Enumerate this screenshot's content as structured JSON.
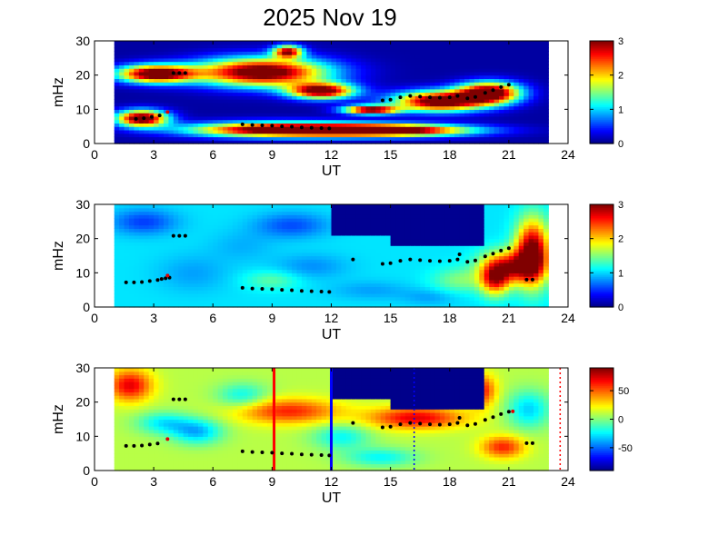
{
  "figure": {
    "title": "2025 Nov 19"
  },
  "chart_data": [
    {
      "type": "heatmap",
      "xlabel": "UT",
      "ylabel": "mHz",
      "xlim": [
        0,
        24
      ],
      "ylim": [
        0,
        30
      ],
      "xticks": [
        "0",
        "3",
        "6",
        "9",
        "12",
        "15",
        "18",
        "21",
        "24"
      ],
      "yticks": [
        "0",
        "10",
        "20",
        "30"
      ],
      "colorbar": {
        "min": 0,
        "max": 3,
        "ticks": [
          "0",
          "1",
          "2",
          "3"
        ],
        "colormap": "jet"
      },
      "data_span_ut": [
        1,
        23
      ],
      "field": {
        "background": 0.1,
        "blobs": [
          {
            "x": 3.1,
            "y": 20.5,
            "rx": 2.1,
            "ry": 2.8,
            "v": 3.4
          },
          {
            "x": 2.4,
            "y": 7.5,
            "rx": 1.4,
            "ry": 2.6,
            "v": 3.4
          },
          {
            "x": 8.5,
            "y": 21,
            "rx": 3.6,
            "ry": 4.5,
            "v": 3.4
          },
          {
            "x": 11.5,
            "y": 15.5,
            "rx": 1.8,
            "ry": 2.5,
            "v": 3.2
          },
          {
            "x": 9.5,
            "y": 4.2,
            "rx": 5.0,
            "ry": 2.3,
            "v": 3.4
          },
          {
            "x": 15,
            "y": 4,
            "rx": 4.5,
            "ry": 1.9,
            "v": 3.3
          },
          {
            "x": 17.5,
            "y": 12.5,
            "rx": 2.5,
            "ry": 3.2,
            "v": 3.4
          },
          {
            "x": 20,
            "y": 15,
            "rx": 1.7,
            "ry": 3.3,
            "v": 3.4
          },
          {
            "x": 14,
            "y": 10,
            "rx": 1.5,
            "ry": 1.4,
            "v": 3.2
          },
          {
            "x": 9.8,
            "y": 27,
            "rx": 0.8,
            "ry": 2.0,
            "v": 2.8
          }
        ],
        "rects": []
      },
      "points_black": [
        {
          "x": 2.1,
          "y": 7.2
        },
        {
          "x": 2.5,
          "y": 7.4
        },
        {
          "x": 2.9,
          "y": 7.8
        },
        {
          "x": 3.3,
          "y": 8.2
        },
        {
          "x": 4,
          "y": 20.6
        },
        {
          "x": 4.3,
          "y": 20.6
        },
        {
          "x": 4.6,
          "y": 20.6
        },
        {
          "x": 7.5,
          "y": 5.6
        },
        {
          "x": 8,
          "y": 5.4
        },
        {
          "x": 8.5,
          "y": 5.3
        },
        {
          "x": 9,
          "y": 5.2
        },
        {
          "x": 9.5,
          "y": 5
        },
        {
          "x": 10,
          "y": 4.9
        },
        {
          "x": 10.5,
          "y": 4.7
        },
        {
          "x": 11,
          "y": 4.6
        },
        {
          "x": 11.5,
          "y": 4.5
        },
        {
          "x": 11.9,
          "y": 4.4
        },
        {
          "x": 14.6,
          "y": 12.6
        },
        {
          "x": 15,
          "y": 12.8
        },
        {
          "x": 15.5,
          "y": 13.5
        },
        {
          "x": 16,
          "y": 13.9
        },
        {
          "x": 16.5,
          "y": 13.7
        },
        {
          "x": 17,
          "y": 13.5
        },
        {
          "x": 17.5,
          "y": 13.4
        },
        {
          "x": 18,
          "y": 13.5
        },
        {
          "x": 18.4,
          "y": 13.9
        },
        {
          "x": 18.9,
          "y": 13.2
        },
        {
          "x": 19.3,
          "y": 13.6
        },
        {
          "x": 19.8,
          "y": 14.8
        },
        {
          "x": 20.2,
          "y": 15.6
        },
        {
          "x": 20.6,
          "y": 16.5
        },
        {
          "x": 21,
          "y": 17.2
        }
      ],
      "points_red": [
        {
          "x": 3.7,
          "y": 9.2
        }
      ]
    },
    {
      "type": "heatmap",
      "xlabel": "UT",
      "ylabel": "mHz",
      "xlim": [
        0,
        24
      ],
      "ylim": [
        0,
        30
      ],
      "xticks": [
        "0",
        "3",
        "6",
        "9",
        "12",
        "15",
        "18",
        "21",
        "24"
      ],
      "yticks": [
        "0",
        "10",
        "20",
        "30"
      ],
      "colorbar": {
        "min": 0,
        "max": 3,
        "ticks": [
          "0",
          "1",
          "2",
          "3"
        ],
        "colormap": "jet"
      },
      "data_span_ut": [
        1,
        23
      ],
      "field": {
        "background": 1.05,
        "blobs": [
          {
            "x": 2.5,
            "y": 25,
            "rx": 1.8,
            "ry": 4,
            "v": 0.55
          },
          {
            "x": 5,
            "y": 10,
            "rx": 2,
            "ry": 6,
            "v": 0.85
          },
          {
            "x": 7.5,
            "y": 18,
            "rx": 1.8,
            "ry": 5,
            "v": 0.9
          },
          {
            "x": 10,
            "y": 24,
            "rx": 2,
            "ry": 4,
            "v": 0.6
          },
          {
            "x": 11,
            "y": 12,
            "rx": 2,
            "ry": 4,
            "v": 0.8
          },
          {
            "x": 14,
            "y": 5,
            "rx": 2.2,
            "ry": 3,
            "v": 0.85
          },
          {
            "x": 17,
            "y": 3,
            "rx": 1.5,
            "ry": 2.5,
            "v": 0.85
          },
          {
            "x": 9,
            "y": 8,
            "rx": 1.5,
            "ry": 3,
            "v": 1.4
          },
          {
            "x": 18.5,
            "y": 8,
            "rx": 1.5,
            "ry": 4,
            "v": 1.5
          },
          {
            "x": 21,
            "y": 12,
            "rx": 1.5,
            "ry": 5,
            "v": 2.6
          },
          {
            "x": 22.2,
            "y": 16,
            "rx": 0.9,
            "ry": 10,
            "v": 3.2
          },
          {
            "x": 20.3,
            "y": 8,
            "rx": 0.8,
            "ry": 5,
            "v": 2.4
          }
        ],
        "rects": [
          {
            "x0": 12,
            "x1": 19.8,
            "y0": 21.5,
            "y1": 30,
            "v": 0.05
          },
          {
            "x0": 15,
            "x1": 19.8,
            "y0": 18,
            "y1": 22,
            "v": 0.05
          }
        ]
      },
      "points_black": [
        {
          "x": 1.6,
          "y": 7.2
        },
        {
          "x": 2,
          "y": 7.2
        },
        {
          "x": 2.4,
          "y": 7.3
        },
        {
          "x": 2.8,
          "y": 7.6
        },
        {
          "x": 3.2,
          "y": 7.9
        },
        {
          "x": 3.4,
          "y": 8.2
        },
        {
          "x": 3.6,
          "y": 8.4
        },
        {
          "x": 3.8,
          "y": 8.6
        },
        {
          "x": 4,
          "y": 20.8
        },
        {
          "x": 4.3,
          "y": 20.8
        },
        {
          "x": 4.6,
          "y": 20.8
        },
        {
          "x": 7.5,
          "y": 5.6
        },
        {
          "x": 8,
          "y": 5.4
        },
        {
          "x": 8.5,
          "y": 5.3
        },
        {
          "x": 9,
          "y": 5.2
        },
        {
          "x": 9.5,
          "y": 5
        },
        {
          "x": 10,
          "y": 4.9
        },
        {
          "x": 10.5,
          "y": 4.7
        },
        {
          "x": 11,
          "y": 4.6
        },
        {
          "x": 11.5,
          "y": 4.5
        },
        {
          "x": 11.9,
          "y": 4.4
        },
        {
          "x": 13.1,
          "y": 13.9
        },
        {
          "x": 14.6,
          "y": 12.6
        },
        {
          "x": 15,
          "y": 12.8
        },
        {
          "x": 15.5,
          "y": 13.5
        },
        {
          "x": 16,
          "y": 13.9
        },
        {
          "x": 16.5,
          "y": 13.7
        },
        {
          "x": 17,
          "y": 13.5
        },
        {
          "x": 17.5,
          "y": 13.4
        },
        {
          "x": 18,
          "y": 13.5
        },
        {
          "x": 18.4,
          "y": 13.9
        },
        {
          "x": 18.9,
          "y": 13.2
        },
        {
          "x": 19.3,
          "y": 13.6
        },
        {
          "x": 19.8,
          "y": 14.8
        },
        {
          "x": 20.2,
          "y": 15.6
        },
        {
          "x": 20.6,
          "y": 16.5
        },
        {
          "x": 21,
          "y": 17.2
        },
        {
          "x": 18.5,
          "y": 15.4
        },
        {
          "x": 21.9,
          "y": 8
        },
        {
          "x": 22.2,
          "y": 8
        }
      ],
      "points_red": [
        {
          "x": 3.7,
          "y": 9.2
        }
      ]
    },
    {
      "type": "heatmap",
      "xlabel": "UT",
      "ylabel": "mHz",
      "xlim": [
        0,
        24
      ],
      "ylim": [
        0,
        30
      ],
      "xticks": [
        "0",
        "3",
        "6",
        "9",
        "12",
        "15",
        "18",
        "21",
        "24"
      ],
      "yticks": [
        "0",
        "10",
        "20",
        "30"
      ],
      "colorbar": {
        "min": -90,
        "max": 90,
        "ticks": [
          "50",
          "0",
          "-50"
        ],
        "tick_values": [
          50,
          0,
          -50
        ],
        "colormap": "jet"
      },
      "data_span_ut": [
        1,
        23
      ],
      "field": {
        "background": 10,
        "blobs": [
          {
            "x": 1.8,
            "y": 25,
            "rx": 1.2,
            "ry": 5,
            "v": 72
          },
          {
            "x": 9.8,
            "y": 17.5,
            "rx": 2.8,
            "ry": 4,
            "v": 62
          },
          {
            "x": 16.3,
            "y": 15.5,
            "rx": 2.6,
            "ry": 3.5,
            "v": 72
          },
          {
            "x": 20.7,
            "y": 7,
            "rx": 1.2,
            "ry": 3.5,
            "v": 62
          },
          {
            "x": 19.6,
            "y": 23.5,
            "rx": 0.8,
            "ry": 5,
            "v": 66
          },
          {
            "x": 3.5,
            "y": 14,
            "rx": 1.5,
            "ry": 3.5,
            "v": -25
          },
          {
            "x": 5.2,
            "y": 11.5,
            "rx": 1.4,
            "ry": 4,
            "v": -35
          },
          {
            "x": 7.5,
            "y": 22,
            "rx": 1.4,
            "ry": 4,
            "v": -22
          },
          {
            "x": 12.5,
            "y": 10,
            "rx": 1.6,
            "ry": 4,
            "v": -22
          },
          {
            "x": 14.5,
            "y": 4,
            "rx": 2,
            "ry": 3,
            "v": -22
          },
          {
            "x": 22,
            "y": 18,
            "rx": 1.2,
            "ry": 6,
            "v": -30
          }
        ],
        "rects": [
          {
            "x0": 12,
            "x1": 19.8,
            "y0": 21.5,
            "y1": 30,
            "v": -88
          },
          {
            "x0": 15,
            "x1": 19.8,
            "y0": 18,
            "y1": 22,
            "v": -88
          }
        ]
      },
      "points_black": [
        {
          "x": 1.6,
          "y": 7.2
        },
        {
          "x": 2,
          "y": 7.2
        },
        {
          "x": 2.4,
          "y": 7.3
        },
        {
          "x": 2.8,
          "y": 7.6
        },
        {
          "x": 3.2,
          "y": 7.9
        },
        {
          "x": 4,
          "y": 20.8
        },
        {
          "x": 4.3,
          "y": 20.8
        },
        {
          "x": 4.6,
          "y": 20.8
        },
        {
          "x": 7.5,
          "y": 5.6
        },
        {
          "x": 8,
          "y": 5.4
        },
        {
          "x": 8.5,
          "y": 5.3
        },
        {
          "x": 9,
          "y": 5.2
        },
        {
          "x": 9.5,
          "y": 5
        },
        {
          "x": 10,
          "y": 4.9
        },
        {
          "x": 10.5,
          "y": 4.7
        },
        {
          "x": 11,
          "y": 4.6
        },
        {
          "x": 11.5,
          "y": 4.5
        },
        {
          "x": 11.9,
          "y": 4.4
        },
        {
          "x": 13.1,
          "y": 13.9
        },
        {
          "x": 14.6,
          "y": 12.6
        },
        {
          "x": 15,
          "y": 12.8
        },
        {
          "x": 15.5,
          "y": 13.5
        },
        {
          "x": 16,
          "y": 13.9
        },
        {
          "x": 16.5,
          "y": 13.7
        },
        {
          "x": 17,
          "y": 13.5
        },
        {
          "x": 17.5,
          "y": 13.4
        },
        {
          "x": 18,
          "y": 13.5
        },
        {
          "x": 18.4,
          "y": 13.9
        },
        {
          "x": 18.9,
          "y": 13.2
        },
        {
          "x": 19.3,
          "y": 13.6
        },
        {
          "x": 19.8,
          "y": 14.8
        },
        {
          "x": 20.2,
          "y": 15.6
        },
        {
          "x": 20.6,
          "y": 16.5
        },
        {
          "x": 21,
          "y": 17.2
        },
        {
          "x": 18.5,
          "y": 15.4
        },
        {
          "x": 21.9,
          "y": 8
        },
        {
          "x": 22.2,
          "y": 8
        }
      ],
      "points_red": [
        {
          "x": 3.7,
          "y": 9.2
        },
        {
          "x": 21.2,
          "y": 17.3
        }
      ],
      "markers": [
        {
          "x": 9.1,
          "color": "#ff0000",
          "style": "solid"
        },
        {
          "x": 12.0,
          "color": "#0000ff",
          "style": "solid"
        },
        {
          "x": 16.2,
          "color": "#0000ff",
          "style": "dotted"
        },
        {
          "x": 23.6,
          "color": "#ff0000",
          "style": "dotted"
        }
      ]
    }
  ]
}
